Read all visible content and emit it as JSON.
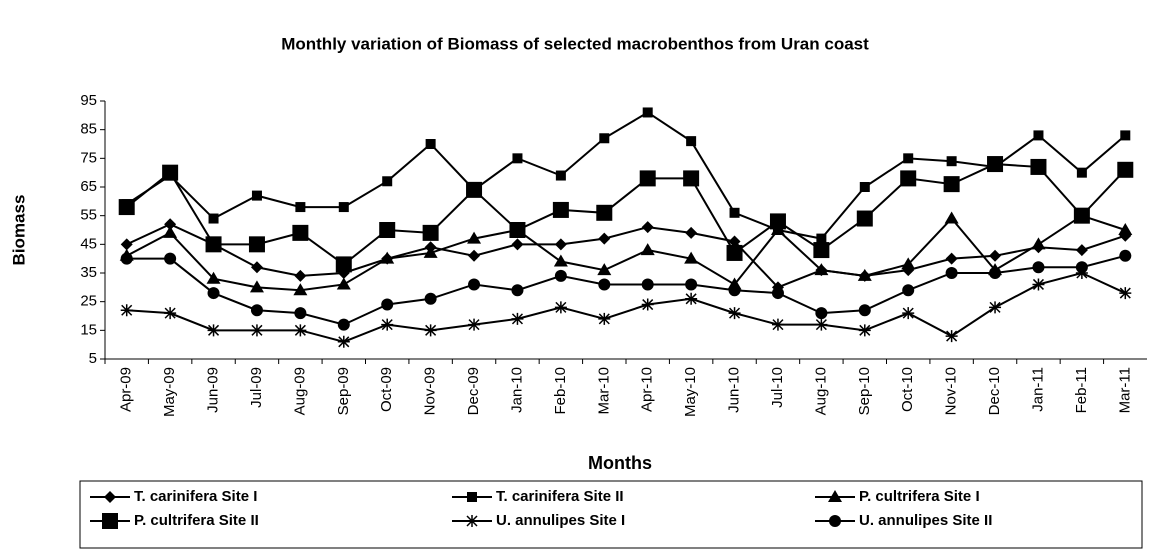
{
  "chart_data": {
    "type": "line",
    "title": "Monthly variation of Biomass of selected macrobenthos from Uran coast",
    "x_label": "Months",
    "y_label": "Biomass",
    "categories": [
      "Apr-09",
      "May-09",
      "Jun-09",
      "Jul-09",
      "Aug-09",
      "Sep-09",
      "Oct-09",
      "Nov-09",
      "Dec-09",
      "Jan-10",
      "Feb-10",
      "Mar-10",
      "Apr-10",
      "May-10",
      "Jun-10",
      "Jul-10",
      "Aug-10",
      "Sep-10",
      "Oct-10",
      "Nov-10",
      "Dec-10",
      "Jan-11",
      "Feb-11",
      "Mar-11"
    ],
    "ylim": [
      5,
      95
    ],
    "yticks": [
      5,
      15,
      25,
      35,
      45,
      55,
      65,
      75,
      85,
      95
    ],
    "grid": false,
    "legend": "bottom",
    "series": [
      {
        "name": "T. carinifera Site I",
        "color": "#000000",
        "marker": "diamond",
        "values": [
          45,
          52,
          45,
          37,
          34,
          35,
          40,
          44,
          41,
          45,
          45,
          47,
          51,
          49,
          46,
          30,
          36,
          34,
          36,
          40,
          41,
          44,
          43,
          48
        ]
      },
      {
        "name": "T. carinifera Site II",
        "color": "#000000",
        "marker": "square",
        "values": [
          59,
          69,
          54,
          62,
          58,
          58,
          67,
          80,
          64,
          75,
          69,
          82,
          91,
          81,
          56,
          50,
          47,
          65,
          75,
          74,
          72,
          83,
          70,
          83
        ]
      },
      {
        "name": "P. cultrifera Site I",
        "color": "#000000",
        "marker": "triangle",
        "values": [
          41,
          49,
          33,
          30,
          29,
          31,
          40,
          42,
          47,
          50,
          39,
          36,
          43,
          40,
          31,
          50,
          36,
          34,
          38,
          54,
          36,
          45,
          55,
          50
        ]
      },
      {
        "name": "P. cultrifera Site II",
        "color": "#000000",
        "marker": "bigsquare",
        "values": [
          58,
          70,
          45,
          45,
          49,
          38,
          50,
          49,
          64,
          50,
          57,
          56,
          68,
          68,
          42,
          53,
          43,
          54,
          68,
          66,
          73,
          72,
          55,
          71
        ]
      },
      {
        "name": "U. annulipes Site I",
        "color": "#000000",
        "marker": "star",
        "values": [
          22,
          21,
          15,
          15,
          15,
          11,
          17,
          15,
          17,
          19,
          23,
          19,
          24,
          26,
          21,
          17,
          17,
          15,
          21,
          13,
          23,
          31,
          35,
          28
        ]
      },
      {
        "name": "U. annulipes Site II",
        "color": "#000000",
        "marker": "circle",
        "values": [
          40,
          40,
          28,
          22,
          21,
          17,
          24,
          26,
          31,
          29,
          34,
          31,
          31,
          31,
          29,
          28,
          21,
          22,
          29,
          35,
          35,
          37,
          37,
          41
        ]
      }
    ]
  }
}
